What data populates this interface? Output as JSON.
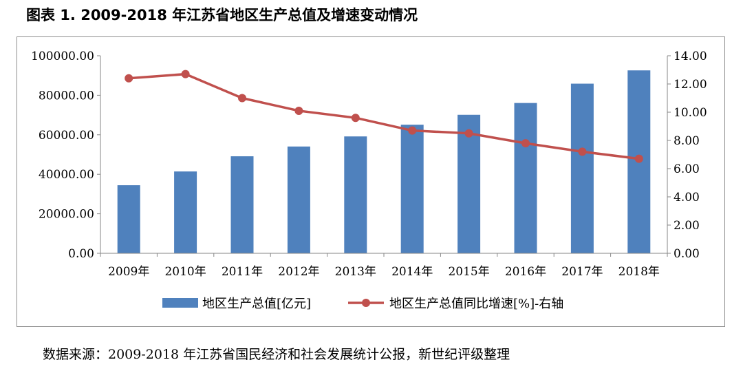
{
  "figure": {
    "title": "图表 1. 2009-2018 年江苏省地区生产总值及增速变动情况",
    "source": "数据来源：2009-2018 年江苏省国民经济和社会发展统计公报，新世纪评级整理"
  },
  "chart_data": {
    "type": "bar",
    "categories": [
      "2009年",
      "2010年",
      "2011年",
      "2012年",
      "2013年",
      "2014年",
      "2015年",
      "2016年",
      "2017年",
      "2018年"
    ],
    "series": [
      {
        "name": "地区生产总值[亿元]",
        "type": "bar",
        "axis": "left",
        "color": "#4f81bd",
        "values": [
          34457,
          41425,
          49110,
          54058,
          59162,
          65088,
          70116,
          76086,
          85870,
          92595
        ]
      },
      {
        "name": "地区生产总值同比增速[%]-右轴",
        "type": "line",
        "axis": "right",
        "color": "#c0504d",
        "values": [
          12.4,
          12.7,
          11.0,
          10.1,
          9.6,
          8.7,
          8.5,
          7.8,
          7.2,
          6.7
        ]
      }
    ],
    "y_left": {
      "min": 0,
      "max": 100000,
      "ticks": [
        "0.00",
        "20000.00",
        "40000.00",
        "60000.00",
        "80000.00",
        "100000.00"
      ]
    },
    "y_right": {
      "min": 0,
      "max": 14,
      "ticks": [
        "0.00",
        "2.00",
        "4.00",
        "6.00",
        "8.00",
        "10.00",
        "12.00",
        "14.00"
      ]
    },
    "grid": false,
    "legend_position": "bottom"
  }
}
